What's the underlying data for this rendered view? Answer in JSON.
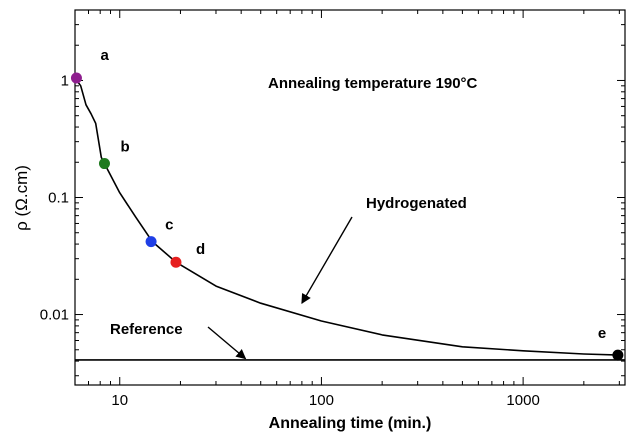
{
  "chart_data": {
    "type": "line",
    "title": "",
    "xlabel": "Annealing time (min.)",
    "ylabel": "ρ (Ω.cm)",
    "x_scale": "log",
    "y_scale": "log",
    "xlim": [
      6,
      3200
    ],
    "ylim": [
      0.0025,
      4
    ],
    "grid": false,
    "x_ticks": [
      {
        "value": 10,
        "label": "10"
      },
      {
        "value": 100,
        "label": "100"
      },
      {
        "value": 1000,
        "label": "1000"
      }
    ],
    "y_ticks": [
      {
        "value": 0.01,
        "label": "0.01"
      },
      {
        "value": 0.1,
        "label": "0.1"
      },
      {
        "value": 1,
        "label": "1"
      }
    ],
    "series": [
      {
        "name": "Hydrogenated",
        "color": "#000000",
        "x": [
          6,
          6.4,
          6.8,
          7.2,
          7.6,
          8.1,
          8.4,
          10,
          12,
          14.5,
          19,
          30,
          50,
          100,
          200,
          500,
          1000,
          2000,
          3000
        ],
        "y": [
          1.05,
          0.9,
          0.62,
          0.52,
          0.43,
          0.22,
          0.195,
          0.11,
          0.068,
          0.042,
          0.028,
          0.0175,
          0.0125,
          0.0088,
          0.0067,
          0.0053,
          0.0049,
          0.0046,
          0.0045
        ]
      },
      {
        "name": "Reference",
        "color": "#000000",
        "x": [
          6,
          3200
        ],
        "y": [
          0.0041,
          0.0041
        ]
      }
    ],
    "points": [
      {
        "label": "a",
        "x": 6.1,
        "y": 1.05,
        "color": "#8e1e8e"
      },
      {
        "label": "b",
        "x": 8.4,
        "y": 0.195,
        "color": "#1f7a1f"
      },
      {
        "label": "c",
        "x": 14.3,
        "y": 0.042,
        "color": "#1f3fe6"
      },
      {
        "label": "d",
        "x": 19,
        "y": 0.028,
        "color": "#e61f1f"
      },
      {
        "label": "e",
        "x": 2950,
        "y": 0.0045,
        "color": "#000000"
      }
    ],
    "annotations": [
      {
        "text": "Annealing temperature 190°C"
      },
      {
        "text": "Hydrogenated",
        "arrow_to": {
          "x": 80,
          "y": 0.0125
        }
      },
      {
        "text": "Reference",
        "arrow_to": {
          "x": 42,
          "y": 0.0042
        }
      }
    ]
  }
}
